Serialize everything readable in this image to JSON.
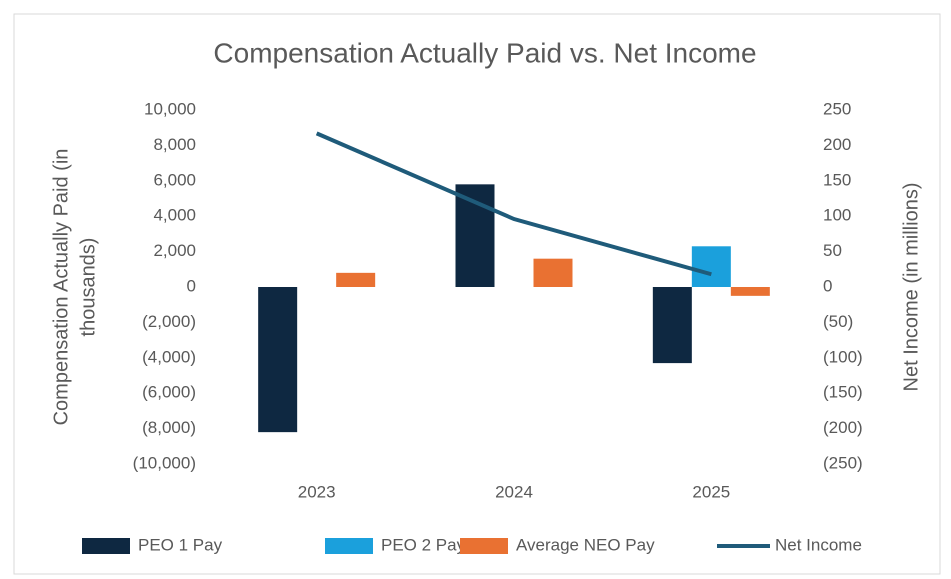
{
  "chart_data": {
    "type": "bar_line",
    "title": "Compensation Actually Paid vs. Net Income",
    "ylabel": [
      "Compensation Actually Paid (in",
      "thousands)"
    ],
    "y2label": "Net Income  (in millions)",
    "categories": [
      "2023",
      "2024",
      "2025"
    ],
    "series": [
      {
        "name": "PEO 1 Pay",
        "color": "#0e2841",
        "type": "bar",
        "values": [
          -8200,
          5800,
          -4300
        ]
      },
      {
        "name": "PEO 2 Pay",
        "color": "#1ba0dc",
        "type": "bar",
        "values": [
          null,
          null,
          2300
        ]
      },
      {
        "name": "Average NEO Pay",
        "color": "#e97132",
        "type": "bar",
        "values": [
          800,
          1600,
          -500
        ]
      },
      {
        "name": "Net Income",
        "color": "#1f5b7a",
        "type": "line",
        "axis": "y2",
        "values": [
          217,
          96,
          18
        ]
      }
    ],
    "ylim": [
      -10000,
      10000
    ],
    "yticks": [
      {
        "value": -10000,
        "label": "(10,000)"
      },
      {
        "value": -8000,
        "label": "(8,000)"
      },
      {
        "value": -6000,
        "label": "(6,000)"
      },
      {
        "value": -4000,
        "label": "(4,000)"
      },
      {
        "value": -2000,
        "label": "(2,000)"
      },
      0,
      {
        "value": 2000,
        "label": "2,000"
      },
      {
        "value": 4000,
        "label": "4,000"
      },
      {
        "value": 6000,
        "label": "6,000"
      },
      {
        "value": 8000,
        "label": "8,000"
      },
      {
        "value": 10000,
        "label": "10,000"
      }
    ],
    "y2lim": [
      -250,
      250
    ],
    "y2ticks": [
      {
        "value": -250,
        "label": "(250)"
      },
      {
        "value": -200,
        "label": "(200)"
      },
      {
        "value": -150,
        "label": "(150)"
      },
      {
        "value": -100,
        "label": "(100)"
      },
      {
        "value": -50,
        "label": "(50)"
      },
      0,
      50,
      100,
      150,
      200,
      250
    ],
    "grid": false,
    "legend": "bottom"
  }
}
